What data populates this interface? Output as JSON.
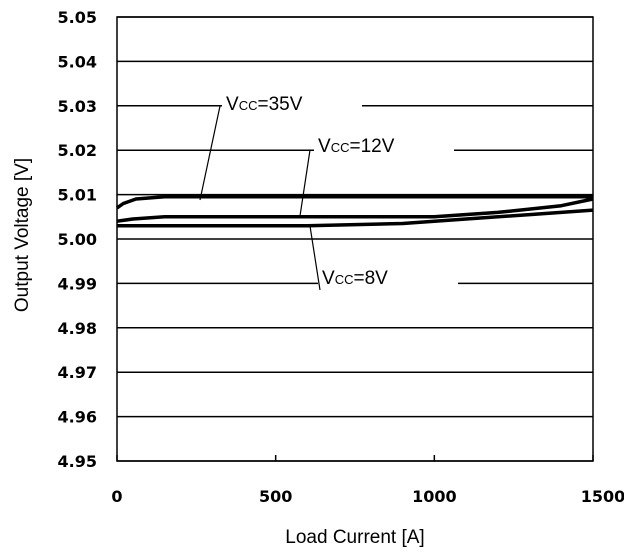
{
  "chart_data": {
    "type": "line",
    "xlabel": "Load Current [A]",
    "ylabel": "Output Voltage [V]",
    "xlim": [
      0,
      1500
    ],
    "ylim": [
      4.95,
      5.05
    ],
    "xticks": [
      "0",
      "500",
      "1000",
      "1500"
    ],
    "yticks": [
      "5.05",
      "5.04",
      "5.03",
      "5.02",
      "5.01",
      "5.00",
      "4.99",
      "4.98",
      "4.97",
      "4.96",
      "4.95"
    ],
    "grid": "horizontal",
    "series": [
      {
        "name": "VCC=35V",
        "x": [
          0,
          20,
          60,
          150,
          400,
          800,
          1200,
          1500
        ],
        "y": [
          5.007,
          5.008,
          5.009,
          5.0095,
          5.0095,
          5.0095,
          5.0095,
          5.0095
        ]
      },
      {
        "name": "VCC=12V",
        "x": [
          0,
          50,
          150,
          400,
          700,
          1000,
          1200,
          1400,
          1500
        ],
        "y": [
          5.004,
          5.0045,
          5.005,
          5.005,
          5.005,
          5.005,
          5.006,
          5.0075,
          5.009
        ]
      },
      {
        "name": "VCC=8V",
        "x": [
          0,
          300,
          600,
          900,
          1100,
          1300,
          1500
        ],
        "y": [
          5.003,
          5.003,
          5.003,
          5.0035,
          5.0045,
          5.0055,
          5.0065
        ]
      }
    ],
    "annotations": [
      {
        "label_main": "V",
        "label_sub": "CC",
        "label_rest": "=35V",
        "x": 280,
        "y": 5.03
      },
      {
        "label_main": "V",
        "label_sub": "CC",
        "label_rest": "=12V",
        "x": 600,
        "y": 5.02
      },
      {
        "label_main": "V",
        "label_sub": "CC",
        "label_rest": "=8V",
        "x": 640,
        "y": 4.99
      }
    ]
  }
}
